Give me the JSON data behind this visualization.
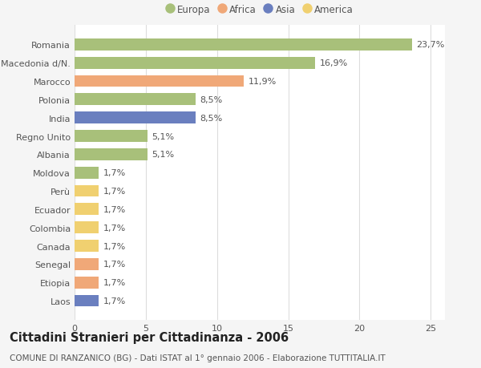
{
  "categories": [
    "Romania",
    "Macedonia d/N.",
    "Marocco",
    "Polonia",
    "India",
    "Regno Unito",
    "Albania",
    "Moldova",
    "Perù",
    "Ecuador",
    "Colombia",
    "Canada",
    "Senegal",
    "Etiopia",
    "Laos"
  ],
  "values": [
    23.7,
    16.9,
    11.9,
    8.5,
    8.5,
    5.1,
    5.1,
    1.7,
    1.7,
    1.7,
    1.7,
    1.7,
    1.7,
    1.7,
    1.7
  ],
  "continents": [
    "Europa",
    "Europa",
    "Africa",
    "Europa",
    "Asia",
    "Europa",
    "Europa",
    "Europa",
    "America",
    "America",
    "America",
    "America",
    "Africa",
    "Africa",
    "Asia"
  ],
  "continent_colors": {
    "Europa": "#a8c07a",
    "Africa": "#f0a878",
    "Asia": "#6a7fbf",
    "America": "#f0d070"
  },
  "labels": [
    "23,7%",
    "16,9%",
    "11,9%",
    "8,5%",
    "8,5%",
    "5,1%",
    "5,1%",
    "1,7%",
    "1,7%",
    "1,7%",
    "1,7%",
    "1,7%",
    "1,7%",
    "1,7%",
    "1,7%"
  ],
  "xlim": [
    0,
    26
  ],
  "xticks": [
    0,
    5,
    10,
    15,
    20,
    25
  ],
  "title": "Cittadini Stranieri per Cittadinanza - 2006",
  "subtitle": "COMUNE DI RANZANICO (BG) - Dati ISTAT al 1° gennaio 2006 - Elaborazione TUTTITALIA.IT",
  "legend_order": [
    "Europa",
    "Africa",
    "Asia",
    "America"
  ],
  "background_color": "#f5f5f5",
  "plot_background": "#ffffff",
  "grid_color": "#dddddd",
  "bar_height": 0.65,
  "label_fontsize": 8,
  "title_fontsize": 10.5,
  "subtitle_fontsize": 7.5,
  "tick_fontsize": 8,
  "legend_fontsize": 8.5
}
